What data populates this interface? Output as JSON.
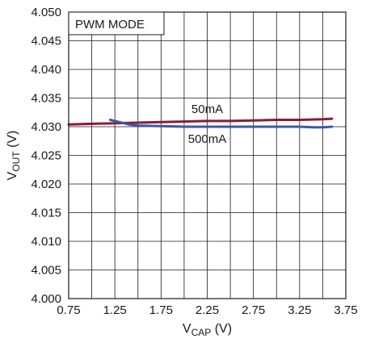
{
  "chart_data": {
    "type": "line",
    "title": "",
    "annotation": "PWM MODE",
    "xlabel": {
      "main": "V",
      "sub": "CAP",
      "unit": " (V)"
    },
    "ylabel": {
      "main": "V",
      "sub": "OUT",
      "unit": " (V)"
    },
    "xlim": [
      0.75,
      3.75
    ],
    "ylim": [
      4.0,
      4.05
    ],
    "x_ticks": [
      "0.75",
      "1.25",
      "1.75",
      "2.25",
      "2.75",
      "3.25",
      "3.75"
    ],
    "y_ticks": [
      "4.000",
      "4.005",
      "4.010",
      "4.015",
      "4.020",
      "4.025",
      "4.030",
      "4.035",
      "4.040",
      "4.045",
      "4.050"
    ],
    "grid": true,
    "x_grid_step": 0.25,
    "y_grid_step": 0.005,
    "series": [
      {
        "name": "50mA",
        "color": "#8b1a3a",
        "x": [
          0.75,
          1.0,
          1.25,
          1.5,
          1.75,
          2.0,
          2.25,
          2.5,
          2.75,
          3.0,
          3.25,
          3.5,
          3.6
        ],
        "y": [
          4.0304,
          4.0305,
          4.0306,
          4.0307,
          4.0308,
          4.0309,
          4.031,
          4.031,
          4.0311,
          4.0312,
          4.0312,
          4.0313,
          4.0314
        ]
      },
      {
        "name": "500mA",
        "color": "#3a5aa8",
        "x": [
          1.2,
          1.3,
          1.4,
          1.5,
          1.75,
          2.0,
          2.25,
          2.5,
          2.75,
          3.0,
          3.25,
          3.4,
          3.5,
          3.6
        ],
        "y": [
          4.0312,
          4.0308,
          4.0304,
          4.0302,
          4.0301,
          4.03,
          4.03,
          4.03,
          4.03,
          4.03,
          4.03,
          4.0299,
          4.0299,
          4.03
        ]
      }
    ]
  }
}
